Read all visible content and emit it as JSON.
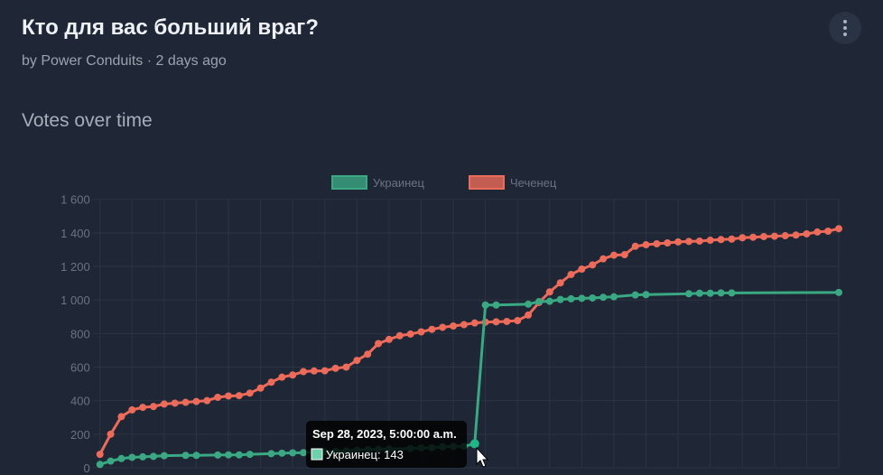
{
  "poll": {
    "title": "Кто для вас больший враг?",
    "byline": "by Power Conduits · 2 days ago",
    "menu_icon": "kebab-vertical-icon"
  },
  "section_title": "Votes over time",
  "chart_data": {
    "type": "line",
    "title": "",
    "xlabel": "",
    "ylabel": "",
    "ylim": [
      0,
      1600
    ],
    "yticks": [
      "0",
      "200",
      "400",
      "600",
      "800",
      "1 000",
      "1 200",
      "1 400",
      "1 600"
    ],
    "ytick_values": [
      0,
      200,
      400,
      600,
      800,
      1000,
      1200,
      1400,
      1600
    ],
    "grid": true,
    "legend_position": "top",
    "series": [
      {
        "name": "Украинец",
        "color": "#3aa882",
        "values": [
          20,
          40,
          55,
          62,
          65,
          68,
          72,
          null,
          74,
          74,
          null,
          76,
          77,
          77,
          80,
          null,
          84,
          87,
          89,
          90,
          null,
          95,
          98,
          100,
          105,
          108,
          110,
          112,
          null,
          115,
          118,
          120,
          125,
          127,
          128,
          143,
          970,
          970,
          null,
          null,
          975,
          990,
          992,
          1003,
          1007,
          1010,
          1012,
          1016,
          1019,
          null,
          1030,
          1032,
          null,
          null,
          null,
          1037,
          1040,
          1040,
          1042,
          1042,
          null,
          null,
          null,
          null,
          null,
          null,
          null,
          null,
          null,
          1045
        ]
      },
      {
        "name": "Чеченец",
        "color": "#ec6b5a",
        "values": [
          80,
          200,
          305,
          345,
          360,
          365,
          380,
          385,
          390,
          395,
          400,
          420,
          428,
          430,
          445,
          475,
          510,
          540,
          553,
          573,
          577,
          578,
          593,
          600,
          640,
          677,
          740,
          765,
          787,
          797,
          810,
          825,
          837,
          845,
          853,
          863,
          868,
          870,
          872,
          877,
          910,
          985,
          1048,
          1102,
          1152,
          1184,
          1209,
          1245,
          1267,
          1270,
          1320,
          1329,
          1335,
          1340,
          1346,
          1349,
          1351,
          1356,
          1360,
          1363,
          1371,
          1374,
          1378,
          1380,
          1383,
          1387,
          1394,
          1405,
          1410,
          1425
        ]
      }
    ],
    "tooltip": {
      "index": 35,
      "title": "Sep 28, 2023, 5:00:00 a.m.",
      "label": "Украинец: 143"
    }
  }
}
